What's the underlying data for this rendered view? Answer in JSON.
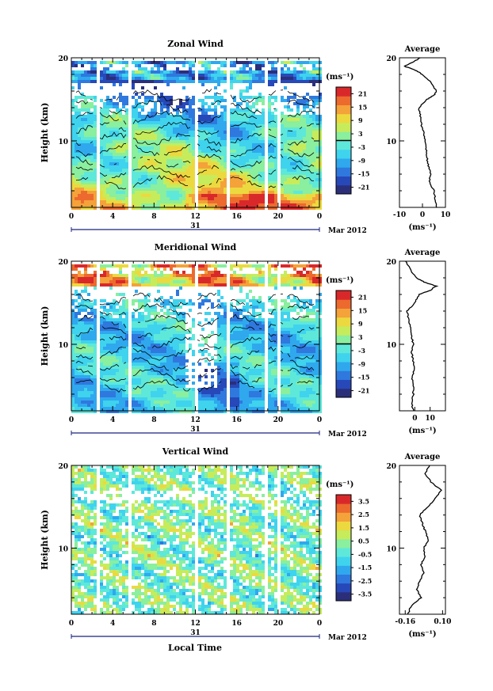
{
  "figure": {
    "date_label": "Mar 2012",
    "day_label": "31",
    "xlabel": "Local Time",
    "x_tick_labels": [
      "0",
      "4",
      "8",
      "12",
      "16",
      "20",
      "0"
    ],
    "units_label": "(ms⁻¹)"
  },
  "colors": {
    "scale": [
      "#2b2f7a",
      "#2748b8",
      "#2f78de",
      "#2fa8ee",
      "#3fd3ee",
      "#5ee8da",
      "#8aef9e",
      "#c6ec5c",
      "#ecd93f",
      "#f4a23a",
      "#ec6a2e",
      "#d9282a"
    ]
  },
  "chart_data": [
    {
      "type": "heatmap",
      "title": "Zonal Wind",
      "ylabel": "Height (km)",
      "x": [
        0,
        24
      ],
      "xlabel": "Local Time",
      "x_ticks": [
        0,
        4,
        8,
        12,
        16,
        20,
        24
      ],
      "ylim": [
        2,
        20
      ],
      "y_ticks": [
        10,
        20
      ],
      "colorbar": {
        "range": [
          -24,
          24
        ],
        "ticks": [
          21,
          15,
          9,
          3,
          -3,
          -9,
          -15,
          -21
        ],
        "tick_labels": [
          "21",
          "15",
          "9",
          "3",
          "-3",
          "-9",
          "-15",
          "-21"
        ],
        "zero_contour": true
      },
      "profile": {
        "title": "Average",
        "xlim": [
          -10,
          10
        ],
        "x_ticks": [
          -10,
          0,
          10
        ],
        "x_tick_labels": [
          "-10",
          "0",
          "10"
        ],
        "xlabel": "(ms⁻¹)",
        "y": [
          2,
          3,
          4,
          5,
          6,
          7,
          8,
          9,
          10,
          11,
          12,
          13,
          14,
          15,
          15.5,
          16,
          17,
          18,
          18.5,
          19,
          19.5,
          20
        ],
        "values": [
          6,
          5.5,
          5,
          3,
          3.5,
          2.5,
          2,
          1.5,
          1,
          0.5,
          -0.5,
          -1,
          -1.5,
          2,
          5,
          6,
          4,
          0,
          -3,
          -8,
          -4,
          -1
        ]
      }
    },
    {
      "type": "heatmap",
      "title": "Meridional Wind",
      "ylabel": "Height (km)",
      "x": [
        0,
        24
      ],
      "xlabel": "Local Time",
      "x_ticks": [
        0,
        4,
        8,
        12,
        16,
        20,
        24
      ],
      "ylim": [
        2,
        20
      ],
      "y_ticks": [
        10,
        20
      ],
      "colorbar": {
        "range": [
          -24,
          24
        ],
        "ticks": [
          21,
          15,
          9,
          3,
          -3,
          -9,
          -15,
          -21
        ],
        "tick_labels": [
          "21",
          "15",
          "9",
          "3",
          "-3",
          "-9",
          "-15",
          "-21"
        ],
        "zero_contour": true
      },
      "profile": {
        "title": "Average",
        "xlim": [
          -10,
          20
        ],
        "x_ticks": [
          0,
          10
        ],
        "x_tick_labels": [
          "0",
          "10"
        ],
        "xlabel": "(ms⁻¹)",
        "y": [
          2,
          3,
          4,
          5,
          6,
          7,
          8,
          9,
          10,
          11,
          12,
          13,
          14,
          15,
          16,
          16.5,
          17,
          17.5,
          18,
          19,
          20
        ],
        "values": [
          -1,
          -2,
          -1,
          -1,
          -2,
          0,
          -1,
          -2,
          -1,
          -2,
          -3,
          -4,
          -5,
          0,
          3,
          10,
          14,
          6,
          1,
          -3,
          -6
        ]
      }
    },
    {
      "type": "heatmap",
      "title": "Vertical Wind",
      "ylabel": "Height (km)",
      "x": [
        0,
        24
      ],
      "xlabel": "Local Time",
      "x_ticks": [
        0,
        4,
        8,
        12,
        16,
        20,
        24
      ],
      "ylim": [
        2,
        20
      ],
      "y_ticks": [
        10,
        20
      ],
      "colorbar": {
        "range": [
          -4,
          4
        ],
        "ticks": [
          3.5,
          2.5,
          1.5,
          0.5,
          -0.5,
          -1.5,
          -2.5,
          -3.5
        ],
        "tick_labels": [
          "3.5",
          "2.5",
          "1.5",
          "0.5",
          "-0.5",
          "-1.5",
          "-2.5",
          "-3.5"
        ],
        "zero_contour": false
      },
      "profile": {
        "title": "Average",
        "xlim": [
          -0.2,
          0.12
        ],
        "x_ticks": [
          -0.16,
          0.1
        ],
        "x_tick_labels": [
          "-0.16",
          "0.10"
        ],
        "xlabel": "(ms⁻¹)",
        "y": [
          2,
          3,
          4,
          5,
          6,
          7,
          8,
          9,
          10,
          11,
          12,
          13,
          14,
          15,
          16,
          17,
          18,
          19,
          20
        ],
        "values": [
          -0.14,
          -0.12,
          -0.05,
          -0.08,
          -0.06,
          -0.03,
          -0.05,
          -0.02,
          -0.03,
          0.0,
          -0.02,
          -0.04,
          -0.06,
          0.0,
          0.05,
          0.09,
          0.02,
          -0.02,
          0.01
        ]
      }
    }
  ]
}
